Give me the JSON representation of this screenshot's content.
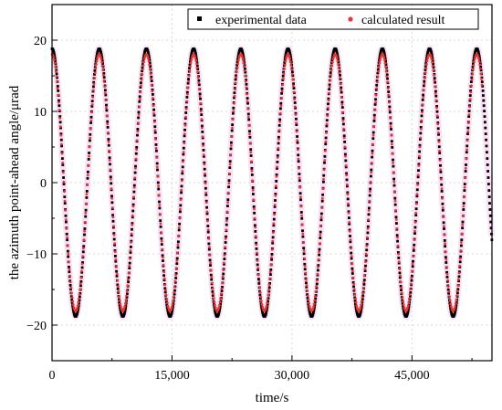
{
  "chart_data": {
    "type": "scatter",
    "xlabel": "time/s",
    "ylabel": "the azimuth point-ahead angle/μrad",
    "xlim": [
      0,
      55000
    ],
    "ylim": [
      -25,
      25
    ],
    "x_ticks": [
      {
        "value": 0,
        "label": "0"
      },
      {
        "value": 15000,
        "label": "15,000"
      },
      {
        "value": 30000,
        "label": "30,000"
      },
      {
        "value": 45000,
        "label": "45,000"
      }
    ],
    "y_ticks": [
      {
        "value": -20,
        "label": "−20"
      },
      {
        "value": -10,
        "label": "−10"
      },
      {
        "value": 0,
        "label": "0"
      },
      {
        "value": 10,
        "label": "10"
      },
      {
        "value": 20,
        "label": "20"
      }
    ],
    "grid": true,
    "legend_position": "top-right",
    "series": [
      {
        "name": "experimental data",
        "color": "#000000",
        "marker": "square",
        "amplitude": 18.8,
        "period_s": 5900,
        "phase_peak_s": 0,
        "x_range": [
          0,
          55000
        ]
      },
      {
        "name": "calculated result",
        "color": "#e8372d",
        "marker": "circle",
        "amplitude": 18.0,
        "period_s": 5900,
        "phase_peak_s": 0,
        "x_range": [
          0,
          53800
        ]
      }
    ]
  }
}
